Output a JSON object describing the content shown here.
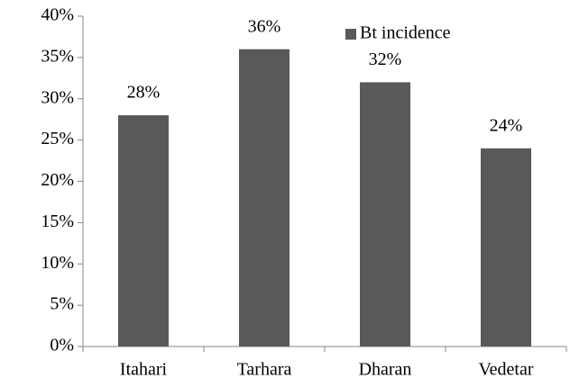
{
  "chart_data": {
    "type": "bar",
    "categories": [
      "Itahari",
      "Tarhara",
      "Dharan",
      "Vedetar"
    ],
    "series": [
      {
        "name": "Bt incidence",
        "color": "#595959",
        "values": [
          28,
          36,
          32,
          24
        ],
        "value_labels": [
          "28%",
          "36%",
          "32%",
          "24%"
        ]
      }
    ],
    "ylim": [
      0,
      40
    ],
    "yticks": [
      {
        "value": 0,
        "label": "0%"
      },
      {
        "value": 5,
        "label": "5%"
      },
      {
        "value": 10,
        "label": "10%"
      },
      {
        "value": 15,
        "label": "15%"
      },
      {
        "value": 20,
        "label": "20%"
      },
      {
        "value": 25,
        "label": "25%"
      },
      {
        "value": 30,
        "label": "30%"
      },
      {
        "value": 35,
        "label": "35%"
      },
      {
        "value": 40,
        "label": "40%"
      }
    ],
    "grid": false,
    "legend": "top-right"
  }
}
